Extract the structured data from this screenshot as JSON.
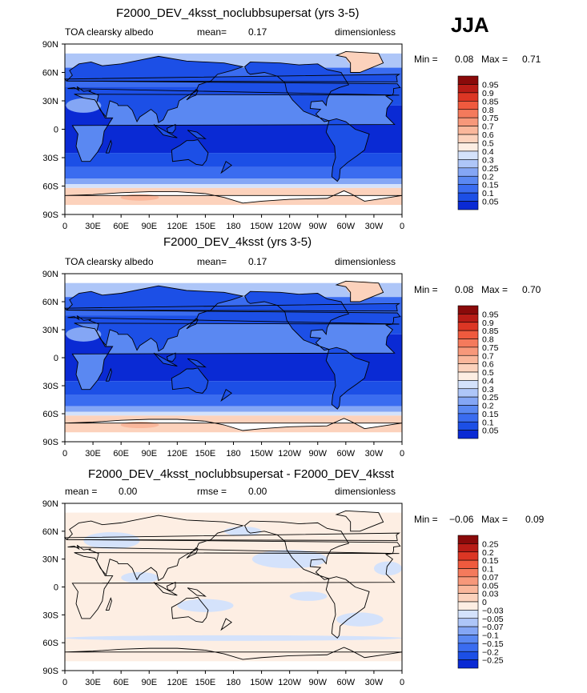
{
  "season": "JJA",
  "colors": {
    "abs_scale": [
      "#08088e",
      "#0a2ad4",
      "#1c4fe6",
      "#3a6cf0",
      "#5a88f2",
      "#84a6f5",
      "#aec6f8",
      "#d4e2fb",
      "#fdeee3",
      "#fcd2bc",
      "#fab79b",
      "#f7987a",
      "#f47a5c",
      "#ef5a3e",
      "#dc3624",
      "#b81c16",
      "#8a0a0a"
    ],
    "diff_scale": [
      "#08088e",
      "#0a2ad4",
      "#1c4fe6",
      "#3a6cf0",
      "#5a88f2",
      "#84a6f5",
      "#aec6f8",
      "#d4e2fb",
      "#fdeee3",
      "#fcd2bc",
      "#fab79b",
      "#f7987a",
      "#f47a5c",
      "#ef5a3e",
      "#dc3624",
      "#b81c16",
      "#8a0a0a"
    ],
    "coast": "#000000"
  },
  "chart_data": [
    {
      "type": "heatmap",
      "title": "F2000_DEV_4ksst_noclubbsupersat (yrs 3-5)",
      "left_label": "TOA clearsky albedo",
      "center_label": "mean=",
      "center_value": "0.17",
      "right_label": "dimensionless",
      "stats": {
        "min_label": "Min =",
        "min": "0.08",
        "max_label": "Max =",
        "max": "0.71"
      },
      "lat_ticks": [
        "90N",
        "60N",
        "30N",
        "0",
        "30S",
        "60S",
        "90S"
      ],
      "lon_ticks": [
        "0",
        "30E",
        "60E",
        "90E",
        "120E",
        "150E",
        "180",
        "150W",
        "120W",
        "90W",
        "60W",
        "30W",
        "0"
      ],
      "colorbar_labels": [
        "0.95",
        "0.9",
        "0.85",
        "0.8",
        "0.75",
        "0.7",
        "0.6",
        "0.5",
        "0.4",
        "0.3",
        "0.25",
        "0.2",
        "0.15",
        "0.1",
        "0.05"
      ],
      "colorbar_levels": [
        0.05,
        0.1,
        0.15,
        0.2,
        0.25,
        0.3,
        0.4,
        0.5,
        0.6,
        0.7,
        0.75,
        0.8,
        0.85,
        0.9,
        0.95
      ],
      "ylim": [
        -90,
        90
      ],
      "xlim": [
        0,
        360
      ]
    },
    {
      "type": "heatmap",
      "title": "F2000_DEV_4ksst (yrs 3-5)",
      "left_label": "TOA clearsky albedo",
      "center_label": "mean=",
      "center_value": "0.17",
      "right_label": "dimensionless",
      "stats": {
        "min_label": "Min =",
        "min": "0.08",
        "max_label": "Max =",
        "max": "0.70"
      },
      "lat_ticks": [
        "90N",
        "60N",
        "30N",
        "0",
        "30S",
        "60S",
        "90S"
      ],
      "lon_ticks": [
        "0",
        "30E",
        "60E",
        "90E",
        "120E",
        "150E",
        "180",
        "150W",
        "120W",
        "90W",
        "60W",
        "30W",
        "0"
      ],
      "colorbar_labels": [
        "0.95",
        "0.9",
        "0.85",
        "0.8",
        "0.75",
        "0.7",
        "0.6",
        "0.5",
        "0.4",
        "0.3",
        "0.25",
        "0.2",
        "0.15",
        "0.1",
        "0.05"
      ],
      "colorbar_levels": [
        0.05,
        0.1,
        0.15,
        0.2,
        0.25,
        0.3,
        0.4,
        0.5,
        0.6,
        0.7,
        0.75,
        0.8,
        0.85,
        0.9,
        0.95
      ],
      "ylim": [
        -90,
        90
      ],
      "xlim": [
        0,
        360
      ]
    },
    {
      "type": "heatmap",
      "title": "F2000_DEV_4ksst_noclubbsupersat - F2000_DEV_4ksst",
      "left_label": "mean =",
      "left_value": "0.00",
      "center_label": "rmse =",
      "center_value": "0.00",
      "right_label": "dimensionless",
      "stats": {
        "min_label": "Min =",
        "min": "−0.06",
        "max_label": "Max =",
        "max": "0.09"
      },
      "lat_ticks": [
        "90N",
        "60N",
        "30N",
        "0",
        "30S",
        "60S",
        "90S"
      ],
      "lon_ticks": [
        "0",
        "30E",
        "60E",
        "90E",
        "120E",
        "150E",
        "180",
        "150W",
        "120W",
        "90W",
        "60W",
        "30W",
        "0"
      ],
      "colorbar_labels": [
        "0.25",
        "0.2",
        "0.15",
        "0.1",
        "0.07",
        "0.05",
        "0.03",
        "0",
        "−0.03",
        "−0.05",
        "−0.07",
        "−0.1",
        "−0.15",
        "−0.2",
        "−0.25"
      ],
      "colorbar_levels": [
        -0.25,
        -0.2,
        -0.15,
        -0.1,
        -0.07,
        -0.05,
        -0.03,
        0,
        0.03,
        0.05,
        0.07,
        0.1,
        0.15,
        0.2,
        0.25
      ],
      "ylim": [
        -90,
        90
      ],
      "xlim": [
        0,
        360
      ]
    }
  ]
}
